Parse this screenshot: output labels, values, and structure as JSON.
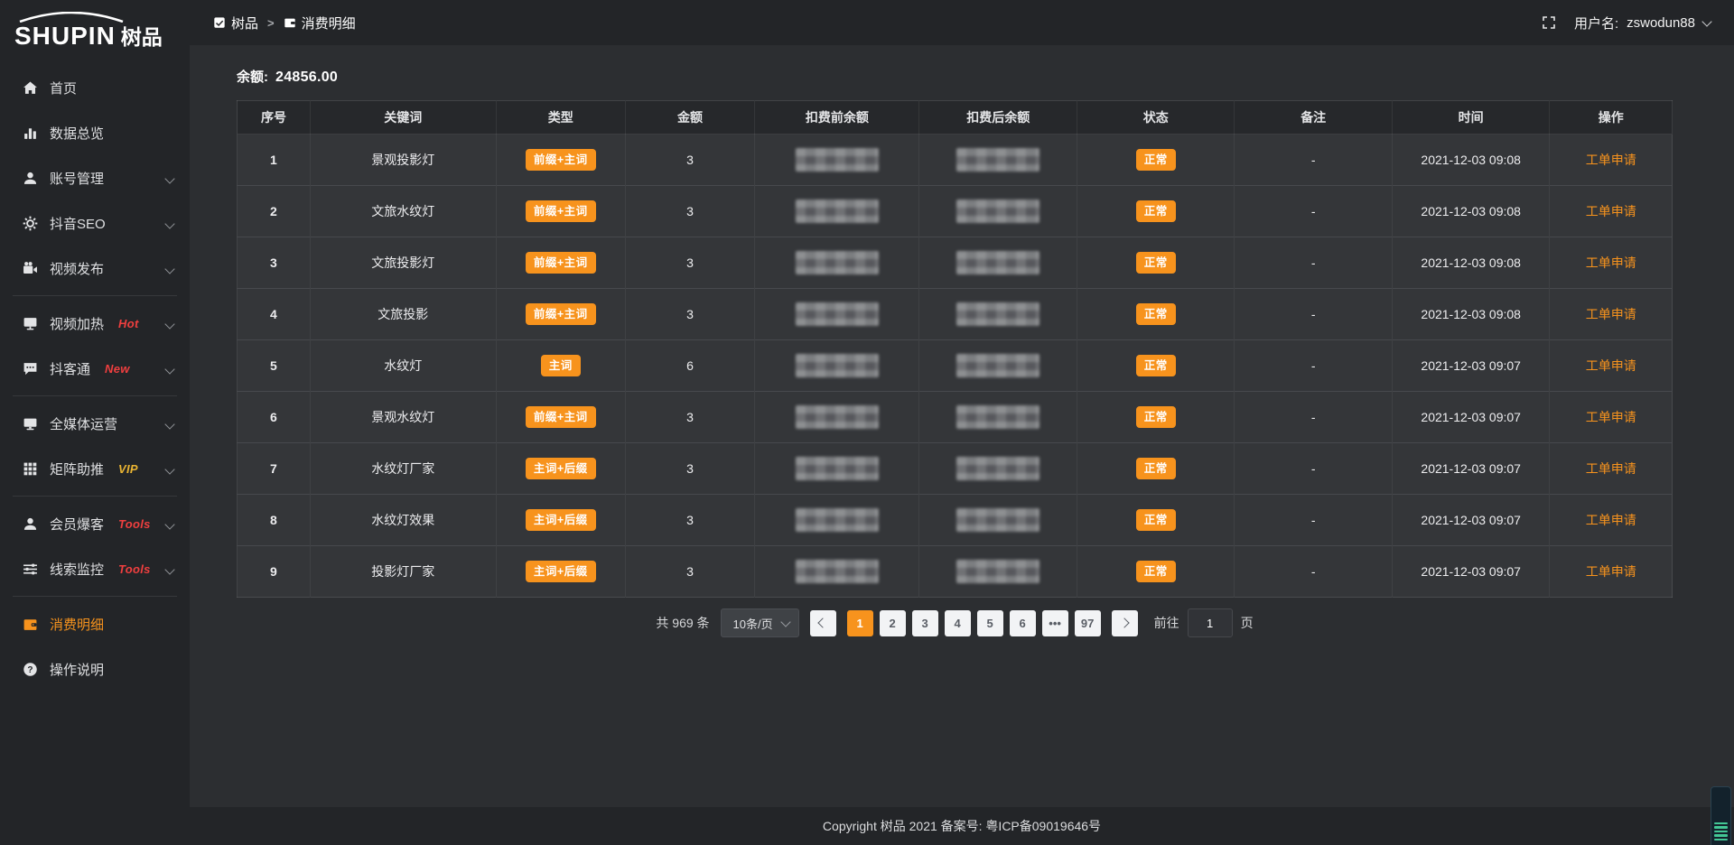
{
  "colors": {
    "accent": "#f7931d",
    "badge_red": "#f03f3f",
    "badge_gold": "#e9b432",
    "status_teal": "#43c795"
  },
  "brand": {
    "name_en": "SHUPIN",
    "name_cn": "树品"
  },
  "topbar": {
    "breadcrumb": [
      {
        "label": "树品",
        "icon": "dashboard-icon"
      },
      {
        "label": "消费明细",
        "icon": "wallet-icon"
      }
    ],
    "separator": ">",
    "username_label": "用户名:",
    "username": "zswodun88"
  },
  "sidebar": {
    "items": [
      {
        "label": "首页",
        "icon": "home-icon"
      },
      {
        "label": "数据总览",
        "icon": "bar-chart-icon"
      },
      {
        "label": "账号管理",
        "icon": "user-icon",
        "expandable": true
      },
      {
        "label": "抖音SEO",
        "icon": "gear-icon",
        "expandable": true
      },
      {
        "label": "视频发布",
        "icon": "video-camera-icon",
        "expandable": true
      },
      {
        "label": "视频加热",
        "icon": "screen-icon",
        "badge": "Hot",
        "badge_color": "#f03f3f",
        "expandable": true
      },
      {
        "label": "抖客通",
        "icon": "chat-icon",
        "badge": "New",
        "badge_color": "#f03f3f",
        "expandable": true
      },
      {
        "label": "全媒体运营",
        "icon": "monitor-icon",
        "expandable": true
      },
      {
        "label": "矩阵助推",
        "icon": "grid-icon",
        "badge": "VIP",
        "badge_color": "#e9b432",
        "expandable": true
      },
      {
        "label": "会员爆客",
        "icon": "member-icon",
        "badge": "Tools",
        "badge_color": "#f03f3f",
        "expandable": true
      },
      {
        "label": "线索监控",
        "icon": "sliders-icon",
        "badge": "Tools",
        "badge_color": "#f03f3f",
        "expandable": true
      },
      {
        "label": "消费明细",
        "icon": "wallet-icon",
        "active": true
      },
      {
        "label": "操作说明",
        "icon": "question-icon"
      }
    ]
  },
  "main": {
    "balance_label": "余额:",
    "balance_value": "24856.00",
    "table": {
      "columns": [
        "序号",
        "关键词",
        "类型",
        "金额",
        "扣费前余额",
        "扣费后余额",
        "状态",
        "备注",
        "时间",
        "操作"
      ],
      "rows": [
        {
          "index": "1",
          "keyword": "景观投影灯",
          "type": "前缀+主词",
          "amount": "3",
          "status": "正常",
          "remark": "-",
          "time": "2021-12-03 09:08",
          "action": "工单申请"
        },
        {
          "index": "2",
          "keyword": "文旅水纹灯",
          "type": "前缀+主词",
          "amount": "3",
          "status": "正常",
          "remark": "-",
          "time": "2021-12-03 09:08",
          "action": "工单申请"
        },
        {
          "index": "3",
          "keyword": "文旅投影灯",
          "type": "前缀+主词",
          "amount": "3",
          "status": "正常",
          "remark": "-",
          "time": "2021-12-03 09:08",
          "action": "工单申请"
        },
        {
          "index": "4",
          "keyword": "文旅投影",
          "type": "前缀+主词",
          "amount": "3",
          "status": "正常",
          "remark": "-",
          "time": "2021-12-03 09:08",
          "action": "工单申请"
        },
        {
          "index": "5",
          "keyword": "水纹灯",
          "type": "主词",
          "amount": "6",
          "status": "正常",
          "remark": "-",
          "time": "2021-12-03 09:07",
          "action": "工单申请"
        },
        {
          "index": "6",
          "keyword": "景观水纹灯",
          "type": "前缀+主词",
          "amount": "3",
          "status": "正常",
          "remark": "-",
          "time": "2021-12-03 09:07",
          "action": "工单申请"
        },
        {
          "index": "7",
          "keyword": "水纹灯厂家",
          "type": "主词+后缀",
          "amount": "3",
          "status": "正常",
          "remark": "-",
          "time": "2021-12-03 09:07",
          "action": "工单申请"
        },
        {
          "index": "8",
          "keyword": "水纹灯效果",
          "type": "主词+后缀",
          "amount": "3",
          "status": "正常",
          "remark": "-",
          "time": "2021-12-03 09:07",
          "action": "工单申请"
        },
        {
          "index": "9",
          "keyword": "投影灯厂家",
          "type": "主词+后缀",
          "amount": "3",
          "status": "正常",
          "remark": "-",
          "time": "2021-12-03 09:07",
          "action": "工单申请"
        }
      ]
    },
    "pagination": {
      "total": "共 969 条",
      "page_size": "10条/页",
      "pages": [
        "1",
        "2",
        "3",
        "4",
        "5",
        "6",
        "•••",
        "97"
      ],
      "active_page": "1",
      "goto_label": "前往",
      "goto_value": "1",
      "goto_unit": "页"
    }
  },
  "footer": {
    "copyright": "Copyright 树品 2021 备案号: 粤ICP备09019646号"
  }
}
